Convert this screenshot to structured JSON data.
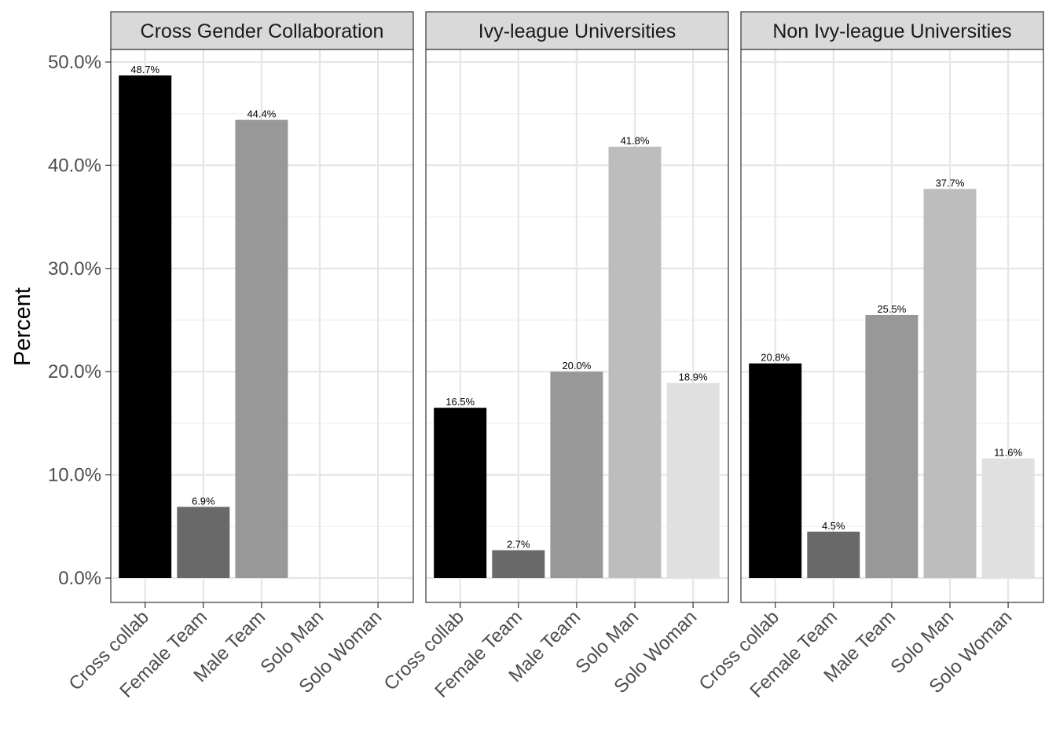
{
  "chart_data": {
    "type": "bar",
    "ylabel": "Percent",
    "ylim": [
      0,
      50
    ],
    "y_ticks": [
      "0.0%",
      "10.0%",
      "20.0%",
      "30.0%",
      "40.0%",
      "50.0%"
    ],
    "categories": [
      "Cross collab",
      "Female Team",
      "Male Team",
      "Solo Man",
      "Solo Woman"
    ],
    "category_colors": [
      "#000000",
      "#696969",
      "#989898",
      "#bdbdbd",
      "#e0e0e0"
    ],
    "facets": [
      {
        "title": "Cross Gender Collaboration",
        "values": [
          48.7,
          6.9,
          44.4,
          null,
          null
        ],
        "labels": [
          "48.7%",
          "6.9%",
          "44.4%",
          "",
          ""
        ]
      },
      {
        "title": "Ivy-league Universities",
        "values": [
          16.5,
          2.7,
          20.0,
          41.8,
          18.9
        ],
        "labels": [
          "16.5%",
          "2.7%",
          "20.0%",
          "41.8%",
          "18.9%"
        ]
      },
      {
        "title": "Non Ivy-league Universities",
        "values": [
          20.8,
          4.5,
          25.5,
          37.7,
          11.6
        ],
        "labels": [
          "20.8%",
          "4.5%",
          "25.5%",
          "37.7%",
          "11.6%"
        ]
      }
    ],
    "grid": true,
    "legend": "none"
  }
}
